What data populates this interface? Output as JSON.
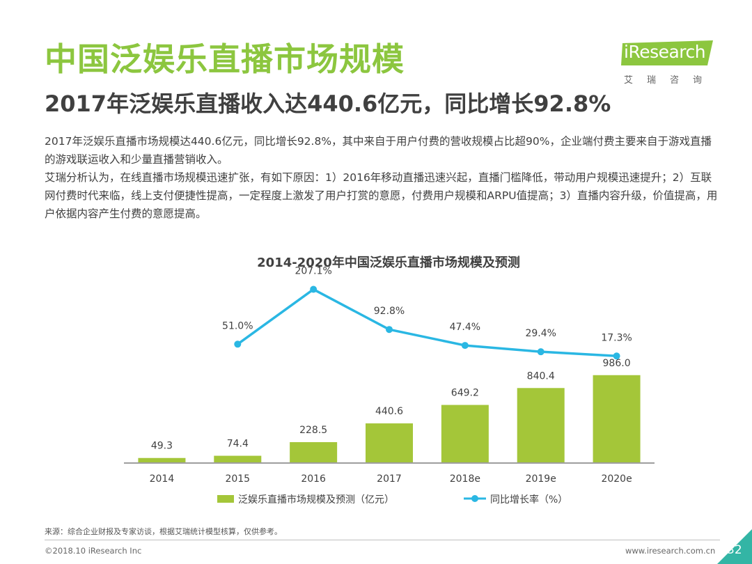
{
  "page": {
    "title": "中国泛娱乐直播市场规模",
    "subtitle": "2017年泛娱乐直播收入达440.6亿元，同比增长92.8%",
    "paragraph1": "2017年泛娱乐直播市场规模达440.6亿元，同比增长92.8%，其中来自于用户付费的营收规模占比超90%，企业端付费主要来自于游戏直播的游戏联运收入和少量直播营销收入。",
    "paragraph2": "艾瑞分析认为，在线直播市场规模迅速扩张，有如下原因：1）2016年移动直播迅速兴起，直播门槛降低，带动用户规模迅速提升；2）互联网付费时代来临，线上支付便捷性提高，一定程度上激发了用户打赏的意愿，付费用户规模和ARPU值提高；3）直播内容升级，价值提高，用户依据内容产生付费的意愿提高。",
    "page_number": "32"
  },
  "logo": {
    "i": "i",
    "brand": "Research",
    "cn": "艾瑞咨询"
  },
  "footer": {
    "source": "来源：综合企业财报及专家访谈，根据艾瑞统计模型核算，仅供参考。",
    "copyright": "©2018.10 iResearch Inc",
    "url": "www.iresearch.com.cn"
  },
  "colors": {
    "accent_green": "#8cc63f",
    "bar_green": "#a4c639",
    "line_blue": "#2ab7e3",
    "corner_teal": "#33b5a5"
  },
  "chart_data": {
    "type": "bar",
    "title": "2014-2020年中国泛娱乐直播市场规模及预测",
    "categories": [
      "2014",
      "2015",
      "2016",
      "2017",
      "2018e",
      "2019e",
      "2020e"
    ],
    "series": [
      {
        "name": "泛娱乐直播市场规模及预测（亿元）",
        "type": "bar",
        "values": [
          49.3,
          74.4,
          228.5,
          440.6,
          649.2,
          840.4,
          986.0
        ],
        "labels": [
          "49.3",
          "74.4",
          "228.5",
          "440.6",
          "649.2",
          "840.4",
          "986.0"
        ]
      },
      {
        "name": "同比增长率（%）",
        "type": "line",
        "values": [
          null,
          51.0,
          207.1,
          92.8,
          47.4,
          29.4,
          17.3
        ],
        "labels": [
          "",
          "51.0%",
          "207.1%",
          "92.8%",
          "47.4%",
          "29.4%",
          "17.3%"
        ]
      }
    ],
    "ylim": [
      0,
      1000
    ],
    "y2lim": [
      0,
      230
    ],
    "legend": "bottom",
    "grid": false
  }
}
